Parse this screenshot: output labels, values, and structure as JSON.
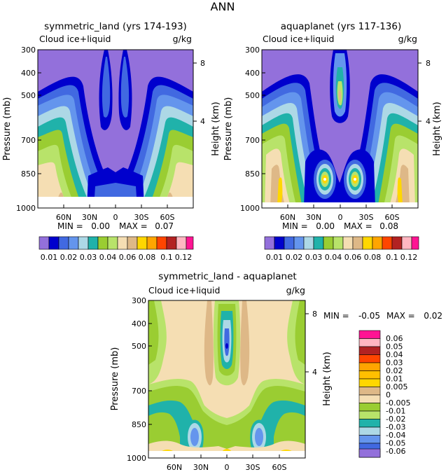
{
  "figure_title": "ANN",
  "colors": {
    "lev_0": "#9370db",
    "lev_1": "#0000cd",
    "lev_2": "#4169e1",
    "lev_3": "#6495ed",
    "lev_4": "#add8e6",
    "lev_5": "#20b2aa",
    "lev_6": "#9acd32",
    "lev_7": "#b8e36a",
    "lev_8": "#f5deb3",
    "lev_9": "#deb887",
    "lev_10": "#ffd700",
    "lev_11": "#ffa500",
    "lev_12": "#ff4500",
    "lev_13": "#b22222",
    "lev_14": "#ffb6c1",
    "lev_15": "#ff1493"
  },
  "chart_data": [
    {
      "type": "heatmap",
      "title": "symmetric_land (yrs 174-193)",
      "field_label": "Cloud ice+liquid",
      "units": "g/kg",
      "ylabel": "Pressure (mb)",
      "ylabel_right": "Height (km)",
      "y_ticks": [
        "300",
        "400",
        "500",
        "700",
        "850",
        "1000"
      ],
      "y_right_ticks": [
        "8",
        "4"
      ],
      "x_ticks": [
        "60N",
        "30N",
        "0",
        "30S",
        "60S"
      ],
      "min_label": "MIN =",
      "min_value": "0.00",
      "max_label": "MAX =",
      "max_value": "0.07",
      "colorbar_labels": [
        "0.01",
        "0.02",
        "0.03",
        "0.04",
        "0.06",
        "0.08",
        "0.1",
        "0.12"
      ],
      "min": 0.0,
      "max": 0.07
    },
    {
      "type": "heatmap",
      "title": "aquaplanet (yrs 117-136)",
      "field_label": "Cloud ice+liquid",
      "units": "g/kg",
      "ylabel": "Pressure (mb)",
      "ylabel_right": "Height (km)",
      "y_ticks": [
        "300",
        "400",
        "500",
        "700",
        "850",
        "1000"
      ],
      "y_right_ticks": [
        "8",
        "4"
      ],
      "x_ticks": [
        "60N",
        "30N",
        "0",
        "30S",
        "60S"
      ],
      "min_label": "MIN =",
      "min_value": "0.00",
      "max_label": "MAX =",
      "max_value": "0.08",
      "colorbar_labels": [
        "0.01",
        "0.02",
        "0.03",
        "0.04",
        "0.06",
        "0.08",
        "0.1",
        "0.12"
      ],
      "min": 0.0,
      "max": 0.08
    },
    {
      "type": "heatmap",
      "title": "symmetric_land - aquaplanet",
      "field_label": "Cloud ice+liquid",
      "units": "g/kg",
      "ylabel": "Pressure (mb)",
      "ylabel_right": "Height (km)",
      "y_ticks": [
        "300",
        "400",
        "500",
        "700",
        "850",
        "1000"
      ],
      "y_right_ticks": [
        "8",
        "4"
      ],
      "x_ticks": [
        "60N",
        "30N",
        "0",
        "30S",
        "60S"
      ],
      "min_label": "MIN =",
      "min_value": "-0.05",
      "max_label": "MAX =",
      "max_value": "0.02",
      "colorbar_labels": [
        "0.06",
        "0.05",
        "0.04",
        "0.03",
        "0.02",
        "0.01",
        "0.005",
        "0",
        "-0.005",
        "-0.01",
        "-0.02",
        "-0.03",
        "-0.04",
        "-0.05",
        "-0.06"
      ],
      "min": -0.05,
      "max": 0.02
    }
  ]
}
